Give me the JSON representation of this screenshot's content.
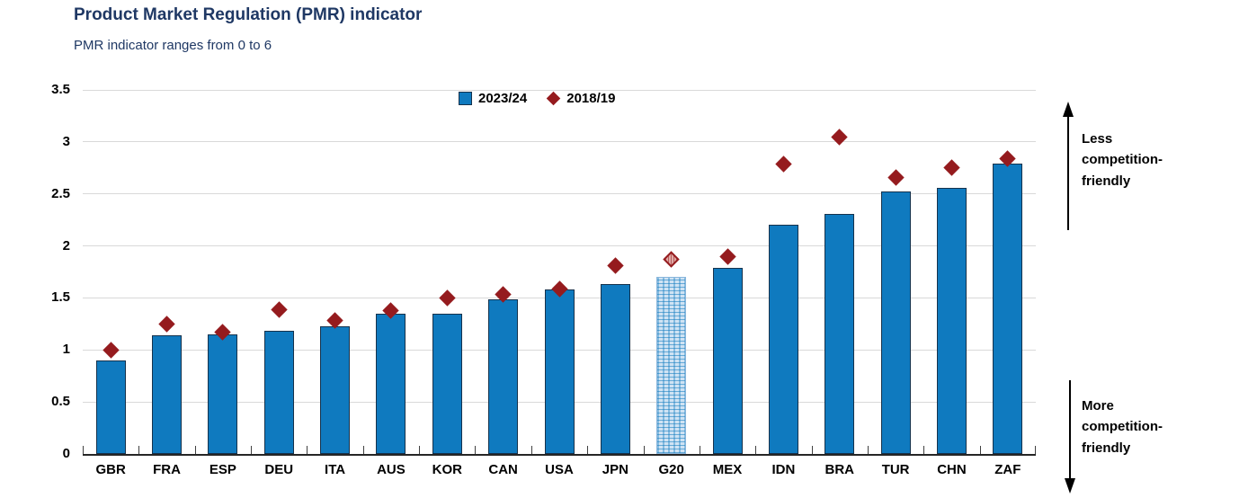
{
  "header": {
    "title": "Product Market Regulation (PMR) indicator",
    "subtitle": "PMR indicator ranges from 0 to 6"
  },
  "legend": {
    "items": [
      {
        "label": "2023/24",
        "marker": "square",
        "color": "#0f7abf"
      },
      {
        "label": "2018/19",
        "marker": "diamond",
        "color": "#951b1e"
      }
    ]
  },
  "annotations": {
    "upper_right": "Less competition-friendly",
    "lower_right": "More competition-friendly"
  },
  "colors": {
    "bar": "#0f7abf",
    "bar_border": "#16324c",
    "diamond": "#951b1e",
    "title_text": "#1f3864",
    "gridline": "#d9d9d9",
    "axis_line": "#262626"
  },
  "chart_data": {
    "type": "bar",
    "title": "Product Market Regulation (PMR) indicator",
    "subtitle": "PMR indicator ranges from 0 to 6",
    "categories": [
      "GBR",
      "FRA",
      "ESP",
      "DEU",
      "ITA",
      "AUS",
      "KOR",
      "CAN",
      "USA",
      "JPN",
      "G20",
      "MEX",
      "IDN",
      "BRA",
      "TUR",
      "CHN",
      "ZAF"
    ],
    "series": [
      {
        "name": "2023/24",
        "type": "bar",
        "values": [
          0.9,
          1.14,
          1.15,
          1.18,
          1.23,
          1.35,
          1.35,
          1.49,
          1.58,
          1.63,
          1.7,
          1.79,
          2.2,
          2.31,
          2.52,
          2.56,
          2.79
        ]
      },
      {
        "name": "2018/19",
        "type": "diamond-marker",
        "values": [
          1.0,
          1.25,
          1.17,
          1.39,
          1.28,
          1.38,
          1.5,
          1.53,
          1.59,
          1.81,
          1.87,
          1.9,
          2.79,
          3.05,
          2.66,
          2.75,
          2.84
        ]
      }
    ],
    "highlight_category": "G20",
    "highlight_style": "hatched",
    "xlabel": "",
    "ylabel": "",
    "ylim": [
      0,
      3.5
    ],
    "yticks": [
      0,
      0.5,
      1,
      1.5,
      2,
      2.5,
      3,
      3.5
    ],
    "grid": true,
    "legend_position": "top-center-inside"
  }
}
